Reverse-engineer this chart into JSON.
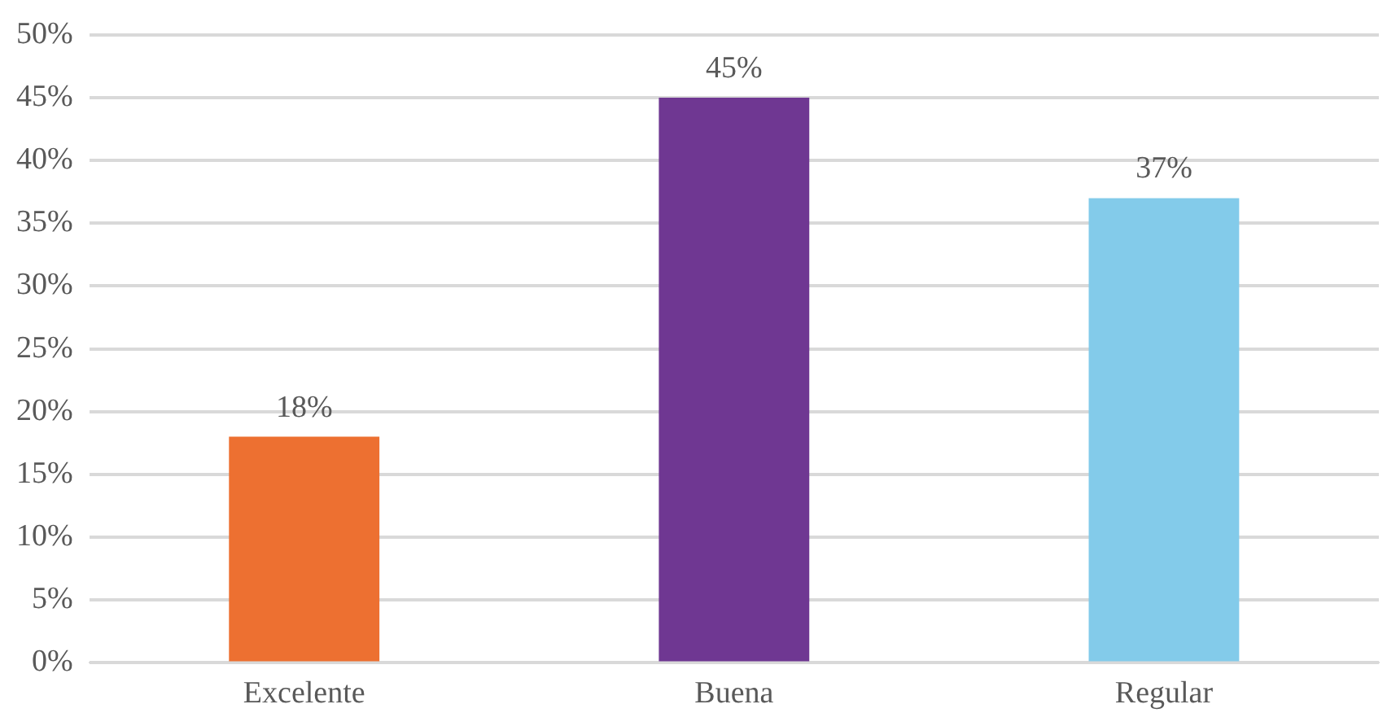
{
  "chart_data": {
    "type": "bar",
    "categories": [
      "Excelente",
      "Buena",
      "Regular"
    ],
    "values": [
      18,
      45,
      37
    ],
    "colors": [
      "#ed7031",
      "#6f3792",
      "#83cbea"
    ],
    "value_labels": [
      "18%",
      "45%",
      "37%"
    ],
    "ylim": [
      0,
      50
    ],
    "yticks": [
      {
        "value": 0,
        "label": "0%"
      },
      {
        "value": 5,
        "label": "5%"
      },
      {
        "value": 10,
        "label": "10%"
      },
      {
        "value": 15,
        "label": "15%"
      },
      {
        "value": 20,
        "label": "20%"
      },
      {
        "value": 25,
        "label": "25%"
      },
      {
        "value": 30,
        "label": "30%"
      },
      {
        "value": 35,
        "label": "35%"
      },
      {
        "value": 40,
        "label": "40%"
      },
      {
        "value": 45,
        "label": "45%"
      },
      {
        "value": 50,
        "label": "50%"
      }
    ],
    "grid": "y",
    "legend": false
  }
}
